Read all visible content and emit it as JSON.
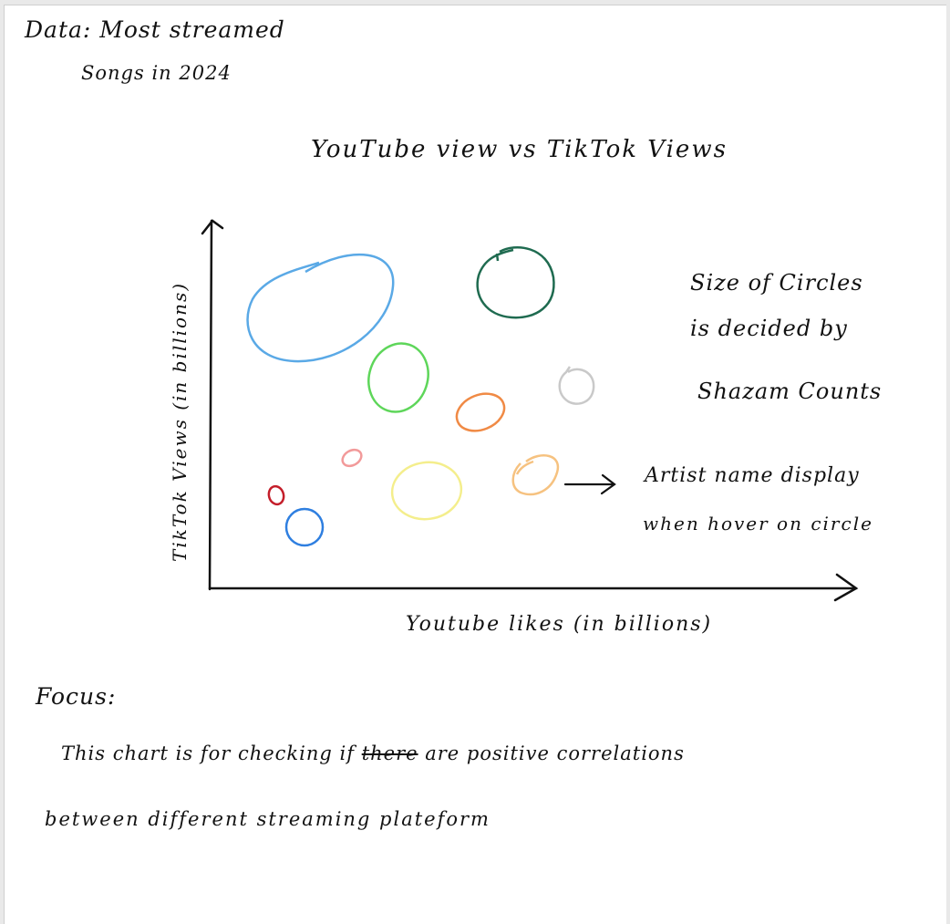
{
  "data_label": "Data: Most streamed",
  "data_label_2": "Songs in 2024",
  "title": "YouTube view vs TikTok Views",
  "x_axis_label": "Youtube likes (in billions)",
  "y_axis_label": "TikTok Views (in billions)",
  "size_note": [
    "Size of Circles",
    "is decided by",
    "Shazam Counts"
  ],
  "hover_note": [
    "Artist name display",
    "when hover on circle"
  ],
  "focus_heading": "Focus:",
  "focus_line_1_a": "This chart is for checking if",
  "focus_line_1_struck": "there",
  "focus_line_1_b": "are positive correlations",
  "focus_line_2": "between different streaming plateform",
  "bubbles": [
    {
      "color": "#5aa9e6"
    },
    {
      "color": "#1f6b50"
    },
    {
      "color": "#5ed65a"
    },
    {
      "color": "#f08a45"
    },
    {
      "color": "#c9c9c9"
    },
    {
      "color": "#f29a9a"
    },
    {
      "color": "#f4ee8c"
    },
    {
      "color": "#f6c280"
    },
    {
      "color": "#c41e2a"
    },
    {
      "color": "#2f7fe0"
    }
  ]
}
